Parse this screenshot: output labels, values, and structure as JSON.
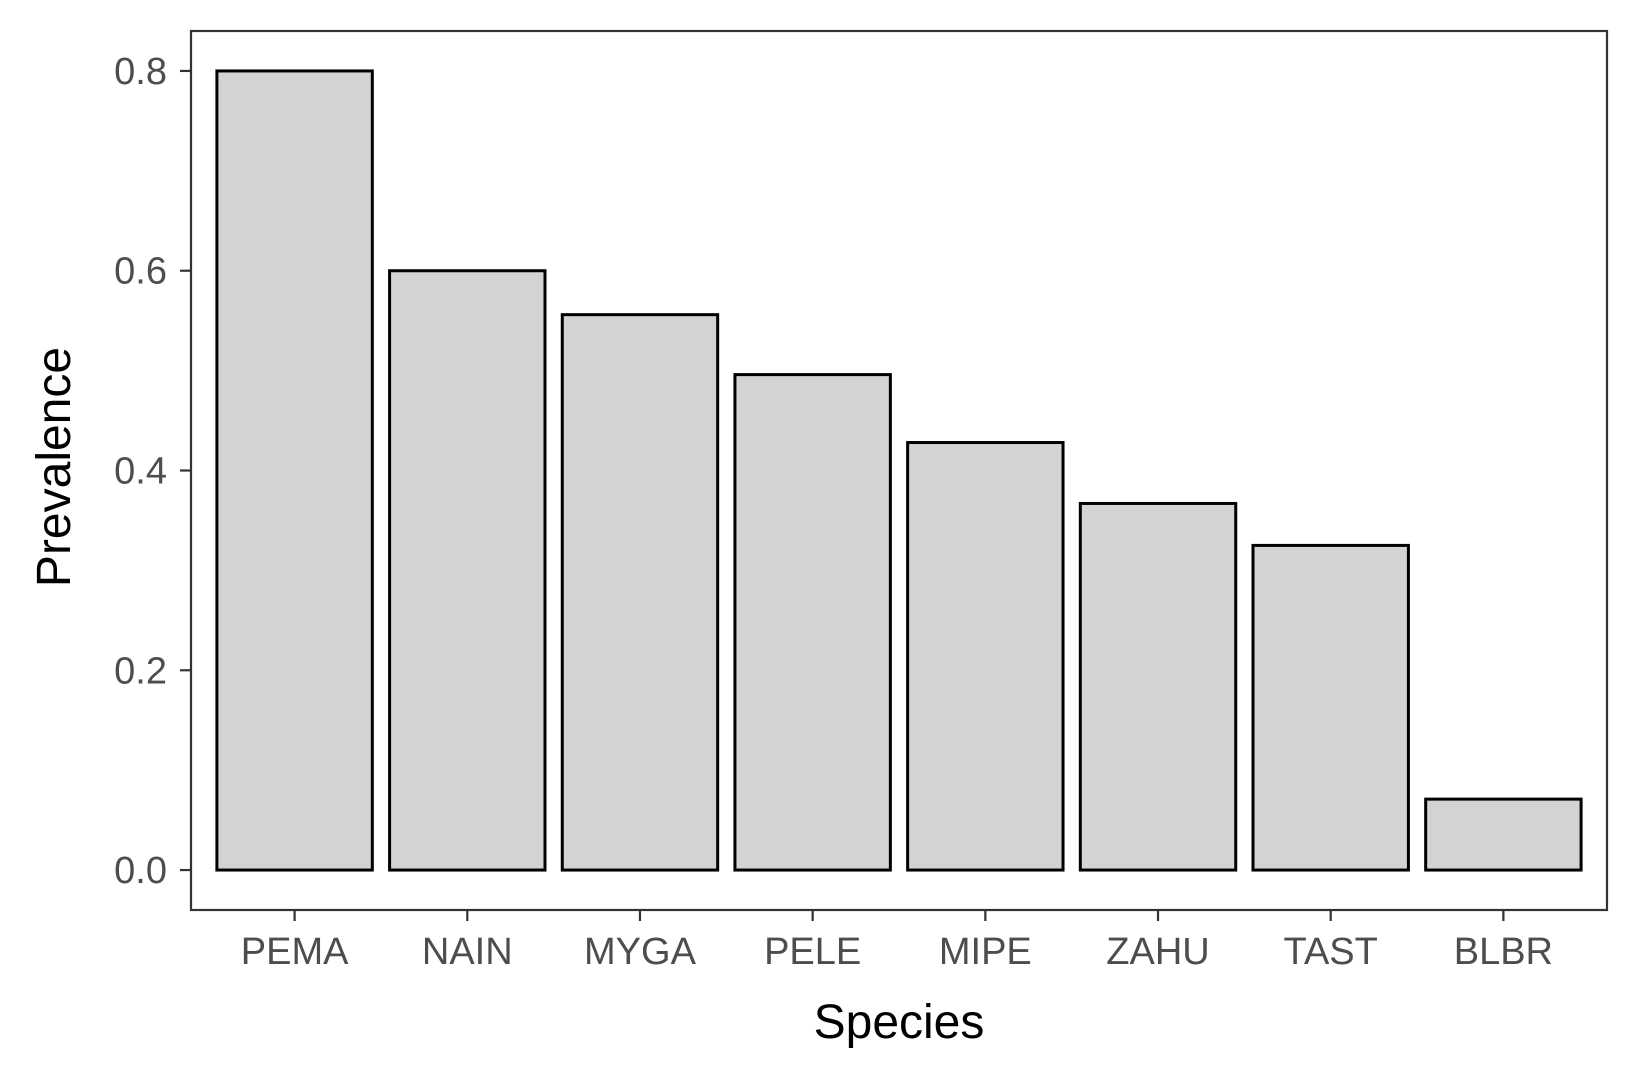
{
  "chart_data": {
    "type": "bar",
    "title": "",
    "xlabel": "Species",
    "ylabel": "Prevalence",
    "categories": [
      "PEMA",
      "NAIN",
      "MYGA",
      "PELE",
      "MIPE",
      "ZAHU",
      "TAST",
      "BLBR"
    ],
    "values": [
      0.8,
      0.6,
      0.556,
      0.496,
      0.428,
      0.367,
      0.325,
      0.071
    ],
    "ylim": [
      -0.04,
      0.84
    ],
    "yticks": [
      0.0,
      0.2,
      0.4,
      0.6,
      0.8
    ],
    "ytick_labels": [
      "0.0",
      "0.2",
      "0.4",
      "0.6",
      "0.8"
    ],
    "grid": false,
    "legend": "none",
    "colors": {
      "bar_fill": "#d3d3d3",
      "bar_stroke": "#000000",
      "panel_border": "#333333",
      "tick_text": "#4d4d4d",
      "axis_title": "#000000"
    }
  }
}
